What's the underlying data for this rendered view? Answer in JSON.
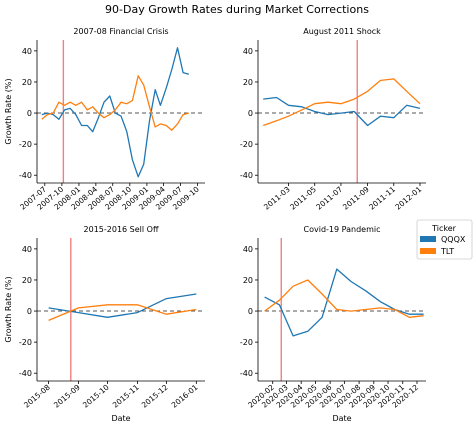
{
  "suptitle": "90-Day Growth Rates during Market Corrections",
  "legend": {
    "title": "Ticker",
    "entries": [
      {
        "name": "QQQX",
        "color": "#1f77b4"
      },
      {
        "name": "TLT",
        "color": "#ff7f0e"
      }
    ]
  },
  "chart_data": [
    {
      "type": "line",
      "title": "2007-08 Financial Crisis",
      "ylabel": "Growth Rate (%)",
      "xlabel": "",
      "xlim": [
        "2007-05-20",
        "2009-11-10"
      ],
      "ylim": [
        -45,
        47
      ],
      "yticks": [
        -40,
        -20,
        0,
        20,
        40
      ],
      "xticks": [
        "2007-07",
        "2007-10",
        "2008-01",
        "2008-04",
        "2008-07",
        "2008-10",
        "2009-01",
        "2009-04",
        "2009-07",
        "2009-10"
      ],
      "reference_line": 0,
      "event_date": "2007-10-09",
      "series": [
        {
          "name": "QQQX",
          "color": "#1f77b4",
          "x": [
            "2007-06-15",
            "2007-07-15",
            "2007-08-15",
            "2007-09-15",
            "2007-10-15",
            "2007-11-15",
            "2007-12-15",
            "2008-01-15",
            "2008-02-15",
            "2008-03-15",
            "2008-04-15",
            "2008-05-15",
            "2008-06-15",
            "2008-07-15",
            "2008-08-15",
            "2008-09-15",
            "2008-10-15",
            "2008-11-15",
            "2008-12-15",
            "2009-01-15",
            "2009-02-15",
            "2009-03-15",
            "2009-04-15",
            "2009-05-15",
            "2009-06-15",
            "2009-07-15",
            "2009-08-15"
          ],
          "y": [
            -1,
            0,
            -1,
            -4,
            2,
            3,
            -1,
            -8,
            -8,
            -12,
            -3,
            7,
            11,
            0,
            -2,
            -12,
            -30,
            -41,
            -33,
            -5,
            15,
            5,
            16,
            28,
            42,
            26,
            25
          ]
        },
        {
          "name": "TLT",
          "color": "#ff7f0e",
          "x": [
            "2007-06-15",
            "2007-07-15",
            "2007-08-15",
            "2007-09-15",
            "2007-10-15",
            "2007-11-15",
            "2007-12-15",
            "2008-01-15",
            "2008-02-15",
            "2008-03-15",
            "2008-04-15",
            "2008-05-15",
            "2008-06-15",
            "2008-07-15",
            "2008-08-15",
            "2008-09-15",
            "2008-10-15",
            "2008-11-15",
            "2008-12-15",
            "2009-01-15",
            "2009-02-15",
            "2009-03-15",
            "2009-04-15",
            "2009-05-15",
            "2009-06-15",
            "2009-07-15",
            "2009-08-15"
          ],
          "y": [
            -4,
            -1,
            0,
            7,
            5,
            7,
            5,
            7,
            2,
            4,
            0,
            -3,
            -1,
            2,
            7,
            6,
            8,
            24,
            18,
            4,
            -9,
            -7,
            -8,
            -11,
            -7,
            -1,
            0
          ]
        }
      ]
    },
    {
      "type": "line",
      "title": "August 2011 Shock",
      "ylabel": "",
      "xlabel": "",
      "xlim": [
        "2010-12-20",
        "2012-01-15"
      ],
      "ylim": [
        -45,
        47
      ],
      "yticks": [
        -40,
        -20,
        0,
        20,
        40
      ],
      "xticks": [
        "2011-03",
        "2011-05",
        "2011-07",
        "2011-09",
        "2011-11",
        "2012-01"
      ],
      "reference_line": 0,
      "event_date": "2011-08-08",
      "series": [
        {
          "name": "QQQX",
          "color": "#1f77b4",
          "x": [
            "2011-01-01",
            "2011-02-01",
            "2011-03-01",
            "2011-04-01",
            "2011-05-01",
            "2011-06-01",
            "2011-07-01",
            "2011-08-01",
            "2011-09-01",
            "2011-10-01",
            "2011-11-01",
            "2011-12-01",
            "2012-01-01"
          ],
          "y": [
            9,
            10,
            5,
            4,
            1,
            -1,
            0,
            1,
            -8,
            -2,
            -3,
            5,
            3
          ]
        },
        {
          "name": "TLT",
          "color": "#ff7f0e",
          "x": [
            "2011-01-01",
            "2011-02-01",
            "2011-03-01",
            "2011-04-01",
            "2011-05-01",
            "2011-06-01",
            "2011-07-01",
            "2011-08-01",
            "2011-09-01",
            "2011-10-01",
            "2011-11-01",
            "2011-12-01",
            "2012-01-01"
          ],
          "y": [
            -8,
            -5,
            -2,
            2,
            6,
            7,
            6,
            9,
            14,
            21,
            22,
            14,
            6
          ]
        }
      ]
    },
    {
      "type": "line",
      "title": "2015-2016 Sell Off",
      "ylabel": "Growth Rate (%)",
      "xlabel": "Date",
      "xlim": [
        "2015-07-20",
        "2016-01-10"
      ],
      "ylim": [
        -45,
        47
      ],
      "yticks": [
        -40,
        -20,
        0,
        20,
        40
      ],
      "xticks": [
        "2015-08",
        "2015-09",
        "2015-10",
        "2015-11",
        "2015-12",
        "2016-01"
      ],
      "reference_line": 0,
      "event_date": "2015-08-24",
      "series": [
        {
          "name": "QQQX",
          "color": "#1f77b4",
          "x": [
            "2015-08-01",
            "2015-09-01",
            "2015-10-01",
            "2015-11-01",
            "2015-12-01",
            "2016-01-01"
          ],
          "y": [
            2,
            -1,
            -4,
            -1,
            8,
            11
          ]
        },
        {
          "name": "TLT",
          "color": "#ff7f0e",
          "x": [
            "2015-08-01",
            "2015-09-01",
            "2015-10-01",
            "2015-11-01",
            "2015-12-01",
            "2016-01-01"
          ],
          "y": [
            -6,
            2,
            4,
            4,
            -2,
            1
          ]
        }
      ]
    },
    {
      "type": "line",
      "title": "Covid-19 Pandemic",
      "ylabel": "",
      "xlabel": "Date",
      "xlim": [
        "2020-01-01",
        "2020-12-20"
      ],
      "ylim": [
        -45,
        47
      ],
      "yticks": [
        -40,
        -20,
        0,
        20,
        40
      ],
      "xticks": [
        "2020-02",
        "2020-03",
        "2020-04",
        "2020-05",
        "2020-06",
        "2020-07",
        "2020-08",
        "2020-09",
        "2020-10",
        "2020-11",
        "2020-12"
      ],
      "reference_line": 0,
      "event_date": "2020-02-19",
      "series": [
        {
          "name": "QQQX",
          "color": "#1f77b4",
          "x": [
            "2020-01-15",
            "2020-02-15",
            "2020-03-15",
            "2020-04-15",
            "2020-05-15",
            "2020-06-15",
            "2020-07-15",
            "2020-08-15",
            "2020-09-15",
            "2020-10-15",
            "2020-11-15",
            "2020-12-15"
          ],
          "y": [
            9,
            4,
            -16,
            -13,
            -4,
            27,
            19,
            13,
            6,
            1,
            -2,
            -2
          ]
        },
        {
          "name": "TLT",
          "color": "#ff7f0e",
          "x": [
            "2020-01-15",
            "2020-02-15",
            "2020-03-15",
            "2020-04-15",
            "2020-05-15",
            "2020-06-15",
            "2020-07-15",
            "2020-08-15",
            "2020-09-15",
            "2020-10-15",
            "2020-11-15",
            "2020-12-15"
          ],
          "y": [
            0,
            7,
            16,
            20,
            11,
            1,
            0,
            1,
            2,
            1,
            -4,
            -3
          ]
        }
      ]
    }
  ]
}
